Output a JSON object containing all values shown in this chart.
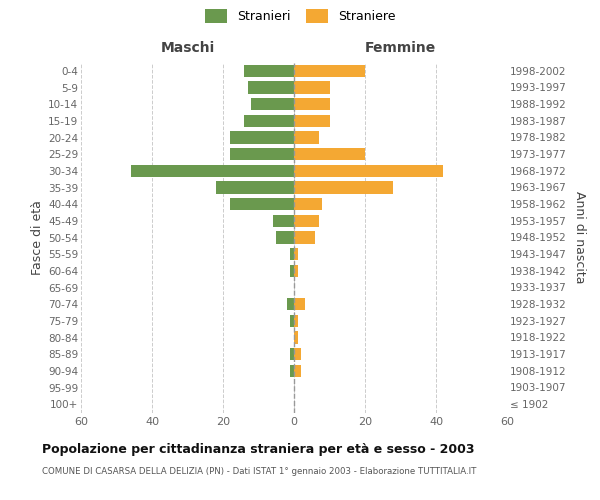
{
  "age_groups": [
    "100+",
    "95-99",
    "90-94",
    "85-89",
    "80-84",
    "75-79",
    "70-74",
    "65-69",
    "60-64",
    "55-59",
    "50-54",
    "45-49",
    "40-44",
    "35-39",
    "30-34",
    "25-29",
    "20-24",
    "15-19",
    "10-14",
    "5-9",
    "0-4"
  ],
  "birth_years": [
    "≤ 1902",
    "1903-1907",
    "1908-1912",
    "1913-1917",
    "1918-1922",
    "1923-1927",
    "1928-1932",
    "1933-1937",
    "1938-1942",
    "1943-1947",
    "1948-1952",
    "1953-1957",
    "1958-1962",
    "1963-1967",
    "1968-1972",
    "1973-1977",
    "1978-1982",
    "1983-1987",
    "1988-1992",
    "1993-1997",
    "1998-2002"
  ],
  "maschi": [
    0,
    0,
    1,
    1,
    0,
    1,
    2,
    0,
    1,
    1,
    5,
    6,
    18,
    22,
    46,
    18,
    18,
    14,
    12,
    13,
    14
  ],
  "femmine": [
    0,
    0,
    2,
    2,
    1,
    1,
    3,
    0,
    1,
    1,
    6,
    7,
    8,
    28,
    42,
    20,
    7,
    10,
    10,
    10,
    20
  ],
  "color_maschi": "#6a994e",
  "color_femmine": "#f4a833",
  "title": "Popolazione per cittadinanza straniera per età e sesso - 2003",
  "subtitle": "COMUNE DI CASARSA DELLA DELIZIA (PN) - Dati ISTAT 1° gennaio 2003 - Elaborazione TUTTITALIA.IT",
  "ylabel_left": "Fasce di età",
  "ylabel_right": "Anni di nascita",
  "xlabel_maschi": "Maschi",
  "xlabel_femmine": "Femmine",
  "legend_maschi": "Stranieri",
  "legend_femmine": "Straniere",
  "xlim": 60,
  "background_color": "#ffffff",
  "grid_color": "#cccccc"
}
